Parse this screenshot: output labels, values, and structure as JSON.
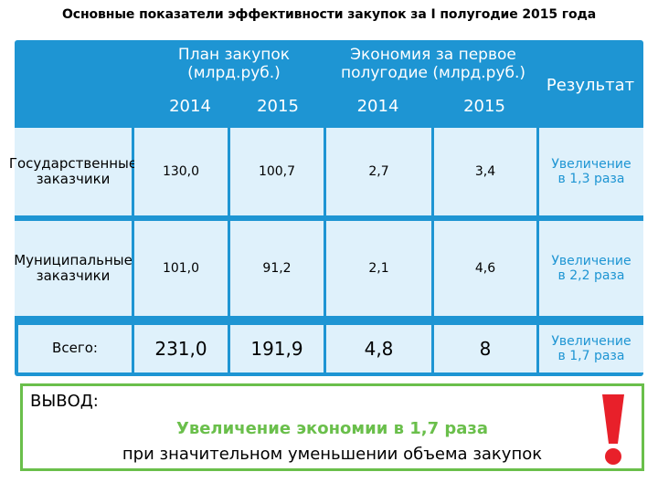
{
  "title": "Основные показатели эффективности закупок за I полугодие 2015 года",
  "table": {
    "header": {
      "plan_group": "План закупок (млрд.руб.)",
      "economy_group": "Экономия за первое полугодие (млрд.руб.)",
      "result": "Результат",
      "years": [
        "2014",
        "2015",
        "2014",
        "2015"
      ]
    },
    "rows": [
      {
        "label": "Государственные заказчики",
        "plan_2014": "130,0",
        "plan_2015": "100,7",
        "econ_2014": "2,7",
        "econ_2015": "3,4",
        "result": "Увеличение в 1,3 раза"
      },
      {
        "label": "Муниципальные заказчики",
        "plan_2014": "101,0",
        "plan_2015": "91,2",
        "econ_2014": "2,1",
        "econ_2015": "4,6",
        "result": "Увеличение в 2,2 раза"
      },
      {
        "label": "Всего:",
        "plan_2014": "231,0",
        "plan_2015": "191,9",
        "econ_2014": "4,8",
        "econ_2015": "8",
        "result": "Увеличение в 1,7 раза"
      }
    ]
  },
  "conclusion": {
    "label": "ВЫВОД:",
    "main": "Увеличение экономии в 1,7 раза",
    "sub": "при значительном уменьшении объема закупок"
  },
  "colors": {
    "accent_blue": "#1e95d3",
    "cell_bg": "#dff1fb",
    "green": "#6abf4b",
    "exclamation_red": "#e8202a"
  },
  "icons": {
    "exclamation": "exclamation-mark-icon"
  }
}
